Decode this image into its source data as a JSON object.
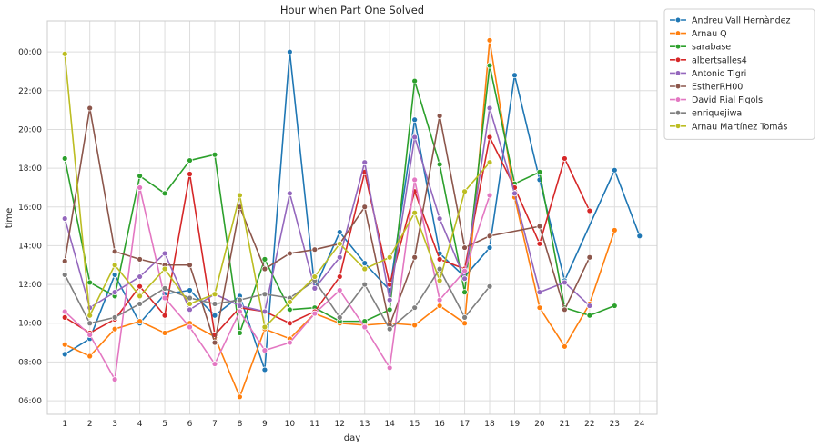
{
  "chart_data": {
    "type": "line",
    "title": "Hour when Part One Solved",
    "xlabel": "day",
    "ylabel": "time",
    "x": [
      1,
      2,
      3,
      4,
      5,
      6,
      7,
      8,
      9,
      10,
      11,
      12,
      13,
      14,
      15,
      16,
      17,
      18,
      19,
      20,
      21,
      22,
      23,
      24
    ],
    "xlim": [
      0.3,
      24.7
    ],
    "ylim": [
      5.3,
      25.6
    ],
    "yticks": [
      6,
      8,
      10,
      12,
      14,
      16,
      18,
      20,
      22,
      24
    ],
    "ytick_labels": [
      "06:00",
      "08:00",
      "10:00",
      "12:00",
      "14:00",
      "16:00",
      "18:00",
      "20:00",
      "22:00",
      "00:00"
    ],
    "grid": true,
    "legend_position": "outside-top-right",
    "markers": "circle",
    "series": [
      {
        "name": "Andreu Vall Hernàndez",
        "color": "#1f77b4",
        "values": [
          8.4,
          9.2,
          12.5,
          10.0,
          11.5,
          11.7,
          10.4,
          11.4,
          7.6,
          24.0,
          11.8,
          14.7,
          13.1,
          11.7,
          20.5,
          13.6,
          12.4,
          13.9,
          22.8,
          17.4,
          12.2,
          null,
          17.9,
          14.5
        ]
      },
      {
        "name": "Arnau Q",
        "color": "#ff7f0e",
        "values": [
          8.9,
          8.3,
          9.7,
          10.1,
          9.5,
          10.0,
          9.3,
          6.2,
          9.7,
          9.2,
          10.5,
          10.0,
          9.9,
          10.0,
          9.9,
          10.9,
          10.0,
          24.6,
          16.5,
          10.8,
          8.8,
          11.0,
          14.8,
          null
        ]
      },
      {
        "name": "sarabase",
        "color": "#2ca02c",
        "values": [
          18.5,
          12.1,
          11.4,
          17.6,
          16.7,
          18.4,
          18.7,
          9.5,
          13.3,
          10.7,
          10.8,
          10.1,
          10.1,
          10.7,
          22.5,
          18.2,
          11.6,
          23.3,
          17.2,
          17.8,
          10.8,
          10.4,
          10.9,
          null
        ]
      },
      {
        "name": "albertsalles4",
        "color": "#d62728",
        "values": [
          10.3,
          9.5,
          10.2,
          11.9,
          10.4,
          17.7,
          9.4,
          10.8,
          10.6,
          10.0,
          10.6,
          12.4,
          17.8,
          12.0,
          16.8,
          13.3,
          12.8,
          19.6,
          17.0,
          14.1,
          18.5,
          15.8,
          null,
          null
        ]
      },
      {
        "name": "Antonio Tigri",
        "color": "#9467bd",
        "values": [
          15.4,
          10.8,
          11.6,
          12.4,
          13.6,
          10.7,
          11.5,
          10.9,
          10.6,
          16.7,
          11.8,
          13.4,
          18.3,
          11.2,
          19.6,
          15.4,
          12.3,
          21.1,
          16.7,
          11.6,
          12.1,
          10.9,
          null,
          null
        ]
      },
      {
        "name": "EstherRH00",
        "color": "#8c564b",
        "values": [
          13.2,
          21.1,
          13.7,
          13.3,
          13.0,
          13.0,
          9.0,
          16.0,
          12.8,
          13.6,
          13.8,
          14.1,
          16.0,
          9.9,
          13.4,
          20.7,
          13.9,
          14.5,
          null,
          15.0,
          10.7,
          13.4,
          null,
          null
        ]
      },
      {
        "name": "David Rial Figols",
        "color": "#e377c2",
        "values": [
          10.6,
          9.4,
          7.1,
          17.0,
          11.3,
          9.8,
          7.9,
          10.6,
          8.6,
          9.0,
          10.5,
          11.7,
          9.8,
          7.7,
          17.4,
          11.2,
          12.7,
          16.6,
          null,
          null,
          null,
          null,
          null,
          null
        ]
      },
      {
        "name": "enriquejiwa",
        "color": "#7f7f7f",
        "values": [
          12.5,
          10.0,
          10.3,
          11.0,
          11.8,
          11.3,
          11.0,
          11.2,
          11.5,
          11.3,
          12.2,
          10.3,
          12.0,
          9.7,
          10.8,
          12.8,
          10.3,
          11.9,
          null,
          null,
          null,
          null,
          null,
          null
        ]
      },
      {
        "name": "Arnau Martínez Tomás",
        "color": "#bcbd22",
        "values": [
          23.9,
          10.4,
          13.0,
          11.4,
          12.8,
          11.0,
          11.5,
          16.6,
          9.8,
          11.1,
          12.4,
          14.1,
          12.8,
          13.4,
          15.7,
          12.2,
          16.8,
          18.3,
          null,
          null,
          null,
          null,
          null,
          null
        ]
      }
    ]
  }
}
